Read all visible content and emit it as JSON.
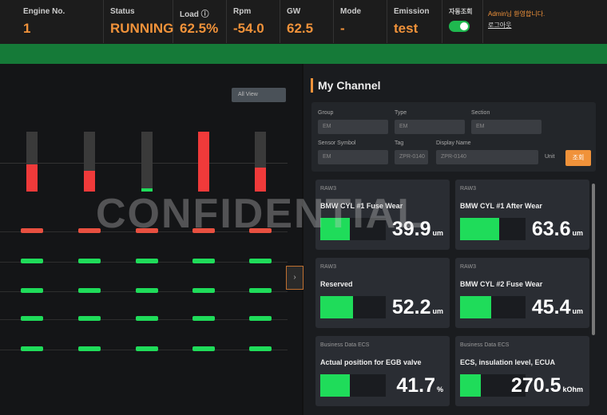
{
  "header": {
    "items": [
      {
        "label": "Engine No.",
        "value": "1"
      },
      {
        "label": "Status",
        "value": "RUNNING"
      },
      {
        "label": "Load ⓘ",
        "value": "62.5%"
      },
      {
        "label": "Rpm",
        "value": "-54.0"
      },
      {
        "label": "GW",
        "value": "62.5"
      },
      {
        "label": "Mode",
        "value": "-"
      },
      {
        "label": "Emission",
        "value": "test"
      }
    ],
    "toggle_label": "자동조회",
    "user": "Admin님 환영합니다.",
    "logout": "로그아웃"
  },
  "watermark": "CONFIDENTIAL",
  "left_panel": {
    "button": "All View",
    "gauges": [
      45,
      35,
      5,
      100,
      40
    ]
  },
  "channel": {
    "title": "My Channel",
    "filters": [
      {
        "label": "Group",
        "value": "EM"
      },
      {
        "label": "Type",
        "value": "EM"
      },
      {
        "label": "Section",
        "value": "EM"
      },
      {
        "label": "Sensor Symbol",
        "value": "EM"
      },
      {
        "label": "Tag",
        "value": "ZPR-0140"
      },
      {
        "label": "Display Name",
        "value": "ZPR-0140"
      }
    ],
    "filter_toggle": "Unit",
    "search": "조회",
    "cards": [
      {
        "group": "RAW3",
        "name": "BMW CYL #1 Fuse Wear",
        "value": "39.9",
        "unit": "um"
      },
      {
        "group": "RAW3",
        "name": "BMW CYL #1 After Wear",
        "value": "63.6",
        "unit": "um"
      },
      {
        "group": "RAW3",
        "name": "Reserved",
        "value": "52.2",
        "unit": "um"
      },
      {
        "group": "RAW3",
        "name": "BMW CYL #2 Fuse Wear",
        "value": "45.4",
        "unit": "um"
      },
      {
        "group": "Business Data ECS",
        "name": "Actual position for EGB valve",
        "value": "41.7",
        "unit": "%"
      },
      {
        "group": "Business Data ECS",
        "name": "ECS, insulation level, ECUA",
        "value": "270.5",
        "unit": "kOhm"
      }
    ]
  }
}
